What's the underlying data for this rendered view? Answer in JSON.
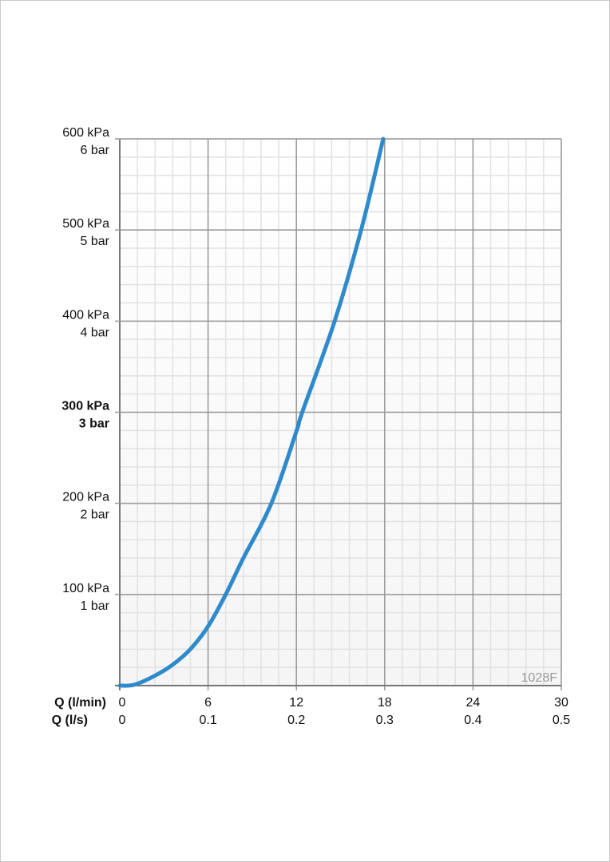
{
  "chart_data": {
    "type": "line",
    "xlabel_rows": [
      "Q (l/min)",
      "Q (l/s)"
    ],
    "x_ticks_lmin": [
      "0",
      "6",
      "12",
      "18",
      "24",
      "30"
    ],
    "x_ticks_ls": [
      "0",
      "0.1",
      "0.2",
      "0.3",
      "0.4",
      "0.5"
    ],
    "y_ticks": [
      {
        "value": 100,
        "kpa": "100 kPa",
        "bar": "1 bar",
        "bold": false
      },
      {
        "value": 200,
        "kpa": "200 kPa",
        "bar": "2 bar",
        "bold": false
      },
      {
        "value": 300,
        "kpa": "300 kPa",
        "bar": "3 bar",
        "bold": true
      },
      {
        "value": 400,
        "kpa": "400 kPa",
        "bar": "4 bar",
        "bold": false
      },
      {
        "value": 500,
        "kpa": "500 kPa",
        "bar": "5 bar",
        "bold": false
      },
      {
        "value": 600,
        "kpa": "600 kPa",
        "bar": "6 bar",
        "bold": false
      }
    ],
    "xlim": [
      0,
      30
    ],
    "ylim": [
      0,
      600
    ],
    "grid": true,
    "minor_x_step": 1.2,
    "minor_y_step": 20,
    "annotation": "1028F",
    "series": [
      {
        "color": "#2f8acb",
        "x": [
          0,
          1,
          2.4,
          3.6,
          4.8,
          6,
          7.2,
          8.4,
          10.3,
          12,
          12.4,
          14.6,
          16.4,
          17.9
        ],
        "y": [
          0,
          1,
          11,
          23,
          40,
          65,
          100,
          140,
          200,
          279,
          300,
          400,
          500,
          600
        ]
      }
    ]
  }
}
